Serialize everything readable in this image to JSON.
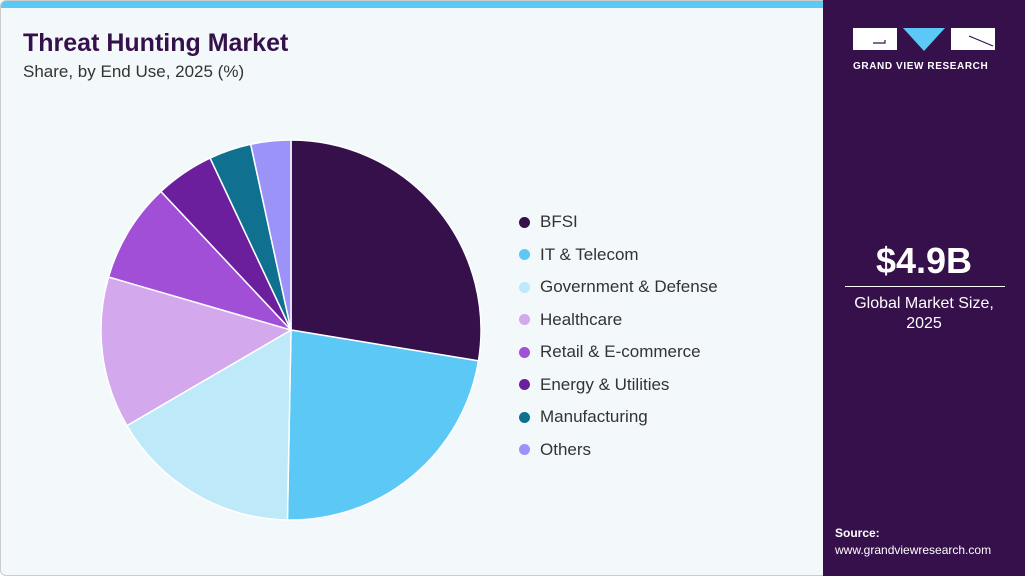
{
  "title": "Threat Hunting Market",
  "subtitle": "Share, by End Use, 2025 (%)",
  "side": {
    "logo_text": "GRAND VIEW RESEARCH",
    "market_size": "$4.9B",
    "caption_line1": "Global Market Size,",
    "caption_line2": "2025",
    "source_label": "Source:",
    "source_url": "www.grandviewresearch.com"
  },
  "chart_data": {
    "type": "pie",
    "title": "Threat Hunting Market",
    "categories": [
      "BFSI",
      "IT & Telecom",
      "Government & Defense",
      "Healthcare",
      "Retail & E-commerce",
      "Energy & Utilities",
      "Manufacturing",
      "Others"
    ],
    "values": [
      27.6,
      22.7,
      16.3,
      12.9,
      8.5,
      5.0,
      3.6,
      3.4
    ],
    "colors": [
      "#36104a",
      "#5bc8f5",
      "#bde9f8",
      "#d3a8ec",
      "#a24fd8",
      "#6c1f9c",
      "#0f7090",
      "#9b93f8"
    ],
    "legend": "right"
  }
}
